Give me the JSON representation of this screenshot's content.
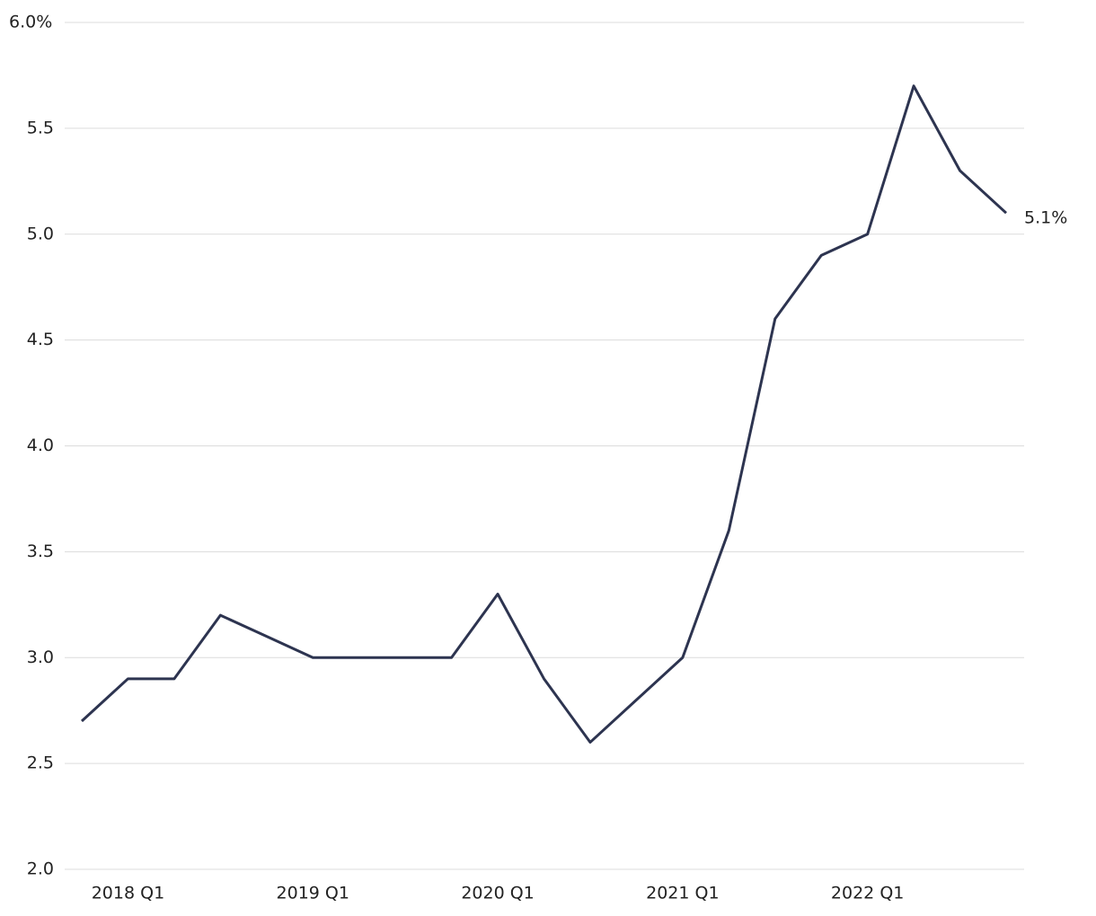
{
  "chart_data": {
    "type": "line",
    "categories": [
      null,
      "2018 Q1",
      null,
      null,
      null,
      "2019 Q1",
      null,
      null,
      null,
      "2020 Q1",
      null,
      null,
      null,
      "2021 Q1",
      null,
      null,
      null,
      "2022 Q1",
      null,
      null,
      null
    ],
    "values": [
      2.7,
      2.9,
      2.9,
      3.2,
      3.1,
      3.0,
      3.0,
      3.0,
      3.0,
      3.3,
      2.9,
      2.6,
      2.8,
      3.0,
      3.6,
      4.6,
      4.9,
      5.0,
      5.7,
      5.3,
      5.1
    ],
    "value_labels": [
      null,
      null,
      null,
      null,
      null,
      null,
      null,
      null,
      null,
      null,
      null,
      null,
      null,
      null,
      null,
      null,
      null,
      null,
      null,
      null,
      "5.1%"
    ],
    "color": "#2d3450",
    "ylim": [
      2,
      6
    ],
    "yticks": [
      {
        "value": 2,
        "label": "2.0"
      },
      2.5,
      {
        "value": 3,
        "label": "3.0"
      },
      3.5,
      {
        "value": 4,
        "label": "4.0"
      },
      4.5,
      {
        "value": 5,
        "label": "5.0"
      },
      5.5,
      {
        "value": 6,
        "label": "6.0%"
      }
    ],
    "grid": true
  }
}
